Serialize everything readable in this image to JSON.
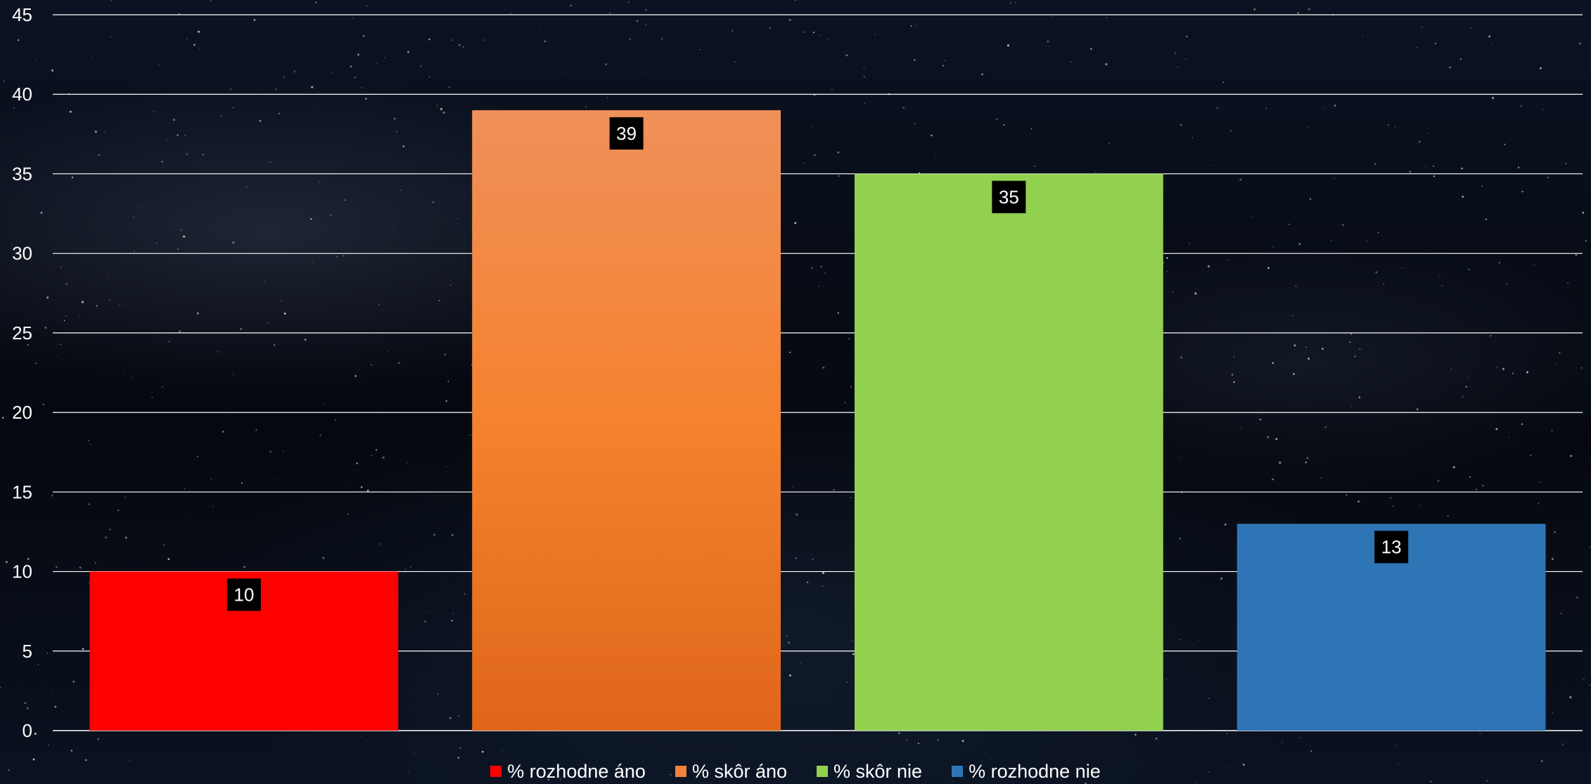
{
  "chart_data": {
    "type": "bar",
    "title": "",
    "xlabel": "",
    "ylabel": "",
    "ylim": [
      0,
      45
    ],
    "yticks": [
      0,
      5,
      10,
      15,
      20,
      25,
      30,
      35,
      40,
      45
    ],
    "grid": true,
    "legend_position": "bottom",
    "categories": [
      "% rozhodne áno",
      "% skôr áno",
      "% skôr nie",
      "% rozhodne nie"
    ],
    "values": [
      10,
      39,
      35,
      13
    ],
    "colors": [
      "#ff0000",
      "#f0833a",
      "#92d050",
      "#2e75b6"
    ],
    "data_labels": [
      "10",
      "39",
      "35",
      "13"
    ]
  }
}
